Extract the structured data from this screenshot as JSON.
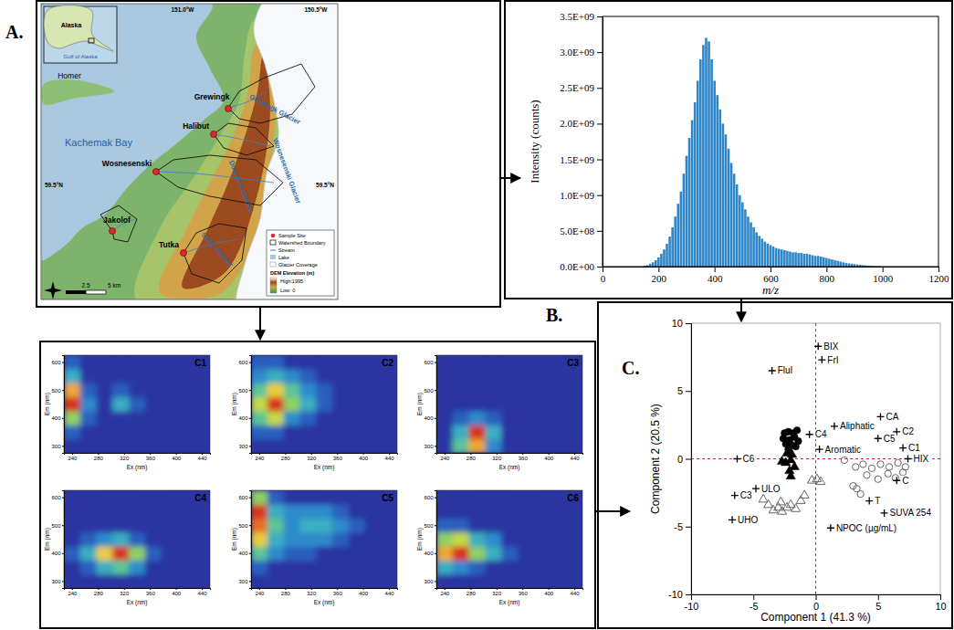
{
  "panel_labels": [
    "A.",
    "B.",
    "C."
  ],
  "map": {
    "inset": [
      "Alaska",
      "Gulf of Alaska"
    ],
    "places": [
      "Homer",
      "Kachemak Bay"
    ],
    "sites": [
      "Grewingk",
      "Halibut",
      "Wosnesenski",
      "Jakolof",
      "Tutka"
    ],
    "glaciers": [
      "Grewingk Glacier",
      "Wosnesenski Glacier",
      "Doroshin Glacier",
      "Sadie Glacier"
    ],
    "coordinates": [
      "151.0°W",
      "150.5°W",
      "59.5°N",
      "59.5°N"
    ],
    "legend": {
      "items": [
        "Sample Site",
        "Watershed Boundary",
        "Stream",
        "Lake",
        "Glacier Coverage"
      ],
      "elevation_title": "DEM Elevation (m)",
      "low": "Low: 0",
      "high": "High:1995"
    },
    "scale": [
      "2.5",
      "5 km"
    ]
  },
  "chart_data": [
    {
      "type": "bar",
      "xlabel": "m/z",
      "ylabel": "Intensity (counts)",
      "color": "#2e86c8",
      "x": [
        150,
        160,
        170,
        180,
        190,
        200,
        210,
        220,
        230,
        240,
        250,
        260,
        270,
        280,
        290,
        300,
        310,
        320,
        330,
        340,
        350,
        360,
        370,
        380,
        390,
        400,
        410,
        420,
        430,
        440,
        450,
        460,
        470,
        480,
        490,
        500,
        510,
        520,
        530,
        540,
        550,
        560,
        570,
        580,
        590,
        600,
        610,
        620,
        630,
        640,
        650,
        660,
        670,
        680,
        690,
        700,
        710,
        720,
        730,
        740,
        750,
        760,
        770,
        780,
        790,
        800,
        810,
        820,
        830,
        840,
        850,
        860,
        870,
        880,
        890,
        900,
        910,
        920,
        930,
        940,
        950,
        960,
        970,
        980,
        990,
        1000
      ],
      "values": [
        10000000.0,
        20000000.0,
        40000000.0,
        60000000.0,
        90000000.0,
        130000000.0,
        180000000.0,
        240000000.0,
        320000000.0,
        420000000.0,
        550000000.0,
        700000000.0,
        880000000.0,
        1050000000.0,
        1300000000.0,
        1550000000.0,
        1800000000.0,
        2050000000.0,
        2300000000.0,
        2600000000.0,
        2900000000.0,
        3100000000.0,
        3200000000.0,
        3150000000.0,
        2900000000.0,
        2600000000.0,
        2400000000.0,
        2200000000.0,
        2000000000.0,
        1850000000.0,
        1650000000.0,
        1450000000.0,
        1300000000.0,
        1150000000.0,
        1000000000.0,
        900000000.0,
        800000000.0,
        700000000.0,
        620000000.0,
        550000000.0,
        480000000.0,
        430000000.0,
        390000000.0,
        350000000.0,
        320000000.0,
        300000000.0,
        280000000.0,
        260000000.0,
        250000000.0,
        240000000.0,
        230000000.0,
        220000000.0,
        210000000.0,
        200000000.0,
        200000000.0,
        190000000.0,
        190000000.0,
        180000000.0,
        180000000.0,
        170000000.0,
        160000000.0,
        150000000.0,
        150000000.0,
        140000000.0,
        130000000.0,
        120000000.0,
        110000000.0,
        100000000.0,
        90000000.0,
        80000000.0,
        70000000.0,
        60000000.0,
        50000000.0,
        45000000.0,
        40000000.0,
        35000000.0,
        30000000.0,
        25000000.0,
        20000000.0,
        17000000.0,
        14000000.0,
        11000000.0,
        8000000.0,
        6000000.0,
        4000000.0,
        2000000.0
      ],
      "xlim": [
        0,
        1200
      ],
      "ylim": [
        0,
        3500000000.0
      ],
      "xticks": [
        0,
        200,
        400,
        600,
        800,
        1000,
        1200
      ],
      "yticks": [
        {
          "value": 0,
          "label": "0.0E+00"
        },
        {
          "value": 500000000.0,
          "label": "5.0E+08"
        },
        {
          "value": 1000000000.0,
          "label": "1.0E+09"
        },
        {
          "value": 1500000000.0,
          "label": "1.5E+09"
        },
        {
          "value": 2000000000.0,
          "label": "2.0E+09"
        },
        {
          "value": 2500000000.0,
          "label": "2.5E+09"
        },
        {
          "value": 3000000000.0,
          "label": "3.0E+09"
        },
        {
          "value": 3500000000.0,
          "label": "3.5E+09"
        }
      ]
    },
    {
      "type": "heatmap",
      "title": "C1",
      "xlabel": "Ex (nm)",
      "ylabel": "Em (nm)",
      "x": [
        240,
        265,
        290,
        315,
        340,
        365,
        390,
        415,
        440
      ],
      "y": [
        300,
        350,
        400,
        450,
        500,
        550,
        600
      ],
      "z": [
        [
          0,
          0,
          0,
          0,
          0,
          0,
          0,
          0,
          0
        ],
        [
          1,
          0,
          0,
          0,
          0,
          0,
          0,
          0,
          0
        ],
        [
          5,
          1,
          0,
          0,
          0,
          0,
          0,
          0,
          0
        ],
        [
          10,
          2,
          0,
          3,
          1,
          0,
          0,
          0,
          0
        ],
        [
          8,
          1,
          0,
          1,
          0,
          0,
          0,
          0,
          0
        ],
        [
          3,
          0,
          0,
          0,
          0,
          0,
          0,
          0,
          0
        ],
        [
          1,
          0,
          0,
          0,
          0,
          0,
          0,
          0,
          0
        ]
      ],
      "zlim": [
        0,
        10
      ],
      "xlim": [
        227.5,
        452.5
      ],
      "ylim": [
        275,
        625
      ],
      "xticks": [
        240,
        280,
        320,
        360,
        400,
        440
      ],
      "yticks": [
        300,
        400,
        500,
        600
      ]
    },
    {
      "type": "heatmap",
      "title": "C2",
      "xlabel": "Ex (nm)",
      "ylabel": "Em (nm)",
      "x": [
        240,
        265,
        290,
        315,
        340,
        365,
        390,
        415,
        440
      ],
      "y": [
        300,
        350,
        400,
        450,
        500,
        550,
        600
      ],
      "z": [
        [
          0,
          0,
          0,
          0,
          0,
          0,
          0,
          0,
          0
        ],
        [
          1,
          1,
          0,
          0,
          0,
          0,
          0,
          0,
          0
        ],
        [
          4,
          6,
          2,
          1,
          0,
          0,
          0,
          0,
          0
        ],
        [
          6,
          10,
          5,
          3,
          1,
          0,
          0,
          0,
          0
        ],
        [
          4,
          7,
          4,
          2,
          1,
          0,
          0,
          0,
          0
        ],
        [
          2,
          3,
          2,
          1,
          0,
          0,
          0,
          0,
          0
        ],
        [
          1,
          1,
          0,
          0,
          0,
          0,
          0,
          0,
          0
        ]
      ],
      "zlim": [
        0,
        10
      ],
      "xlim": [
        227.5,
        452.5
      ],
      "ylim": [
        275,
        625
      ],
      "xticks": [
        240,
        280,
        320,
        360,
        400,
        440
      ],
      "yticks": [
        300,
        400,
        500,
        600
      ]
    },
    {
      "type": "heatmap",
      "title": "C3",
      "xlabel": "Ex (nm)",
      "ylabel": "Em (nm)",
      "x": [
        240,
        265,
        290,
        315,
        340,
        365,
        390,
        415,
        440
      ],
      "y": [
        300,
        350,
        400,
        450,
        500,
        550,
        600
      ],
      "z": [
        [
          0,
          4,
          8,
          2,
          0,
          0,
          0,
          0,
          0
        ],
        [
          0,
          3,
          10,
          3,
          0,
          0,
          0,
          0,
          0
        ],
        [
          0,
          1,
          2,
          1,
          0,
          0,
          0,
          0,
          0
        ],
        [
          0,
          0,
          0,
          0,
          0,
          0,
          0,
          0,
          0
        ],
        [
          0,
          0,
          0,
          0,
          0,
          0,
          0,
          0,
          0
        ],
        [
          0,
          0,
          0,
          0,
          0,
          0,
          0,
          0,
          0
        ],
        [
          0,
          0,
          0,
          0,
          0,
          0,
          0,
          0,
          0
        ]
      ],
      "zlim": [
        0,
        10
      ],
      "xlim": [
        227.5,
        452.5
      ],
      "ylim": [
        275,
        625
      ],
      "xticks": [
        240,
        280,
        320,
        360,
        400,
        440
      ],
      "yticks": [
        300,
        400,
        500,
        600
      ]
    },
    {
      "type": "heatmap",
      "title": "C4",
      "xlabel": "Ex (nm)",
      "ylabel": "Em (nm)",
      "x": [
        240,
        265,
        290,
        315,
        340,
        365,
        390,
        415,
        440
      ],
      "y": [
        300,
        350,
        400,
        450,
        500,
        550,
        600
      ],
      "z": [
        [
          0,
          0,
          0,
          0,
          0,
          0,
          0,
          0,
          0
        ],
        [
          0,
          1,
          3,
          4,
          2,
          0,
          0,
          0,
          0
        ],
        [
          1,
          3,
          7,
          10,
          5,
          1,
          0,
          0,
          0
        ],
        [
          0,
          1,
          2,
          3,
          1,
          0,
          0,
          0,
          0
        ],
        [
          0,
          0,
          0,
          0,
          0,
          0,
          0,
          0,
          0
        ],
        [
          0,
          0,
          0,
          0,
          0,
          0,
          0,
          0,
          0
        ],
        [
          0,
          0,
          0,
          0,
          0,
          0,
          0,
          0,
          0
        ]
      ],
      "zlim": [
        0,
        10
      ],
      "xlim": [
        227.5,
        452.5
      ],
      "ylim": [
        275,
        625
      ],
      "xticks": [
        240,
        280,
        320,
        360,
        400,
        440
      ],
      "yticks": [
        300,
        400,
        500,
        600
      ]
    },
    {
      "type": "heatmap",
      "title": "C5",
      "xlabel": "Ex (nm)",
      "ylabel": "Em (nm)",
      "x": [
        240,
        265,
        290,
        315,
        340,
        365,
        390,
        415,
        440
      ],
      "y": [
        300,
        350,
        400,
        450,
        500,
        550,
        600
      ],
      "z": [
        [
          0,
          0,
          0,
          0,
          0,
          0,
          0,
          0,
          0
        ],
        [
          1,
          0,
          0,
          0,
          0,
          0,
          0,
          0,
          0
        ],
        [
          4,
          2,
          1,
          1,
          0,
          0,
          0,
          0,
          0
        ],
        [
          7,
          3,
          2,
          2,
          2,
          1,
          0,
          0,
          0
        ],
        [
          9,
          4,
          2,
          3,
          3,
          2,
          1,
          0,
          0
        ],
        [
          10,
          3,
          2,
          2,
          2,
          1,
          0,
          0,
          0
        ],
        [
          5,
          1,
          0,
          0,
          0,
          0,
          0,
          0,
          0
        ]
      ],
      "zlim": [
        0,
        10
      ],
      "xlim": [
        227.5,
        452.5
      ],
      "ylim": [
        275,
        625
      ],
      "xticks": [
        240,
        280,
        320,
        360,
        400,
        440
      ],
      "yticks": [
        300,
        400,
        500,
        600
      ]
    },
    {
      "type": "heatmap",
      "title": "C6",
      "xlabel": "Ex (nm)",
      "ylabel": "Em (nm)",
      "x": [
        240,
        265,
        290,
        315,
        340,
        365,
        390,
        415,
        440
      ],
      "y": [
        300,
        350,
        400,
        450,
        500,
        550,
        600
      ],
      "z": [
        [
          0,
          0,
          0,
          0,
          0,
          0,
          0,
          0,
          0
        ],
        [
          3,
          2,
          1,
          0,
          0,
          0,
          0,
          0,
          0
        ],
        [
          8,
          10,
          5,
          3,
          1,
          0,
          0,
          0,
          0
        ],
        [
          5,
          6,
          3,
          2,
          0,
          0,
          0,
          0,
          0
        ],
        [
          1,
          1,
          0,
          0,
          0,
          0,
          0,
          0,
          0
        ],
        [
          0,
          0,
          0,
          0,
          0,
          0,
          0,
          0,
          0
        ],
        [
          0,
          0,
          0,
          0,
          0,
          0,
          0,
          0,
          0
        ]
      ],
      "zlim": [
        0,
        10
      ],
      "xlim": [
        227.5,
        452.5
      ],
      "ylim": [
        275,
        625
      ],
      "xticks": [
        240,
        280,
        320,
        360,
        400,
        440
      ],
      "yticks": [
        300,
        400,
        500,
        600
      ]
    },
    {
      "type": "scatter",
      "xlabel": "Component 1 (41.3 %)",
      "ylabel": "Component 2 (20.5 %)",
      "xlim": [
        -10,
        10
      ],
      "ylim": [
        -10,
        10
      ],
      "xticks": [
        -10,
        -5,
        0,
        5,
        10
      ],
      "yticks": [
        -10,
        -5,
        0,
        5,
        10
      ],
      "series": [
        {
          "marker": "circle",
          "color": "#000000",
          "x": [
            -2.5,
            -2.2,
            -1.8,
            -1.5,
            -2.6,
            -2.1,
            -1.7,
            -1.4,
            -2.4,
            -1.9,
            -1.6,
            -2.2
          ],
          "values": [
            1.9,
            2.0,
            1.9,
            2.1,
            1.5,
            1.4,
            1.6,
            1.3,
            1.1,
            1.0,
            0.9,
            0.7
          ]
        },
        {
          "marker": "triangle",
          "color": "#000000",
          "x": [
            -2.3,
            -1.9,
            -2.0,
            -2.4,
            -1.7,
            -2.1,
            -2.0,
            -2.7
          ],
          "values": [
            0.4,
            0.3,
            -0.1,
            -0.3,
            -0.6,
            -0.9,
            -1.3,
            -0.2
          ]
        },
        {
          "marker": "triangle-open",
          "color": "#666666",
          "x": [
            -4.2,
            -3.8,
            -3.4,
            -3.0,
            -2.7,
            -2.3,
            -2.0,
            -1.6,
            -1.2,
            -0.9,
            -2.8,
            0.1,
            0.4,
            -0.3
          ],
          "values": [
            -3.0,
            -3.4,
            -3.8,
            -3.6,
            -3.9,
            -3.6,
            -3.4,
            -3.7,
            -3.1,
            -2.7,
            -3.2,
            -1.5,
            -1.7,
            -1.6
          ]
        },
        {
          "marker": "circle-open",
          "color": "#666666",
          "x": [
            2.3,
            3.2,
            3.8,
            4.5,
            5.2,
            5.9,
            6.6,
            7.2,
            4.1,
            5.0,
            5.8,
            6.4,
            3.0,
            3.6,
            3.3,
            7.0
          ],
          "values": [
            -0.1,
            -0.6,
            -0.4,
            -0.7,
            -0.4,
            -0.6,
            -0.3,
            -0.6,
            -1.2,
            -1.5,
            -1.1,
            -1.4,
            -2.0,
            -2.6,
            -2.2,
            -1.0
          ]
        },
        {
          "marker": "plus",
          "color": "#000000",
          "labels": [
            "FluI",
            "BIX",
            "FrI",
            "Aliphatic",
            "C4",
            "Aromatic",
            "CA",
            "C2",
            "C5",
            "C1",
            "HIX",
            "C",
            "C6",
            "C3",
            "ULO",
            "UHO",
            "T",
            "NPOC (µg/mL)",
            "SUVA 254"
          ],
          "x": [
            -3.5,
            0.2,
            0.5,
            1.5,
            -0.5,
            0.3,
            5.2,
            6.5,
            5.0,
            7.0,
            7.4,
            6.5,
            -6.3,
            -6.5,
            -4.8,
            -6.7,
            4.3,
            1.2,
            5.5
          ],
          "values": [
            6.5,
            8.3,
            7.3,
            2.4,
            1.8,
            0.7,
            3.1,
            2.0,
            1.5,
            0.8,
            0.0,
            -1.6,
            0.0,
            -2.7,
            -2.2,
            -4.5,
            -3.1,
            -5.1,
            -4.0
          ]
        }
      ]
    }
  ]
}
